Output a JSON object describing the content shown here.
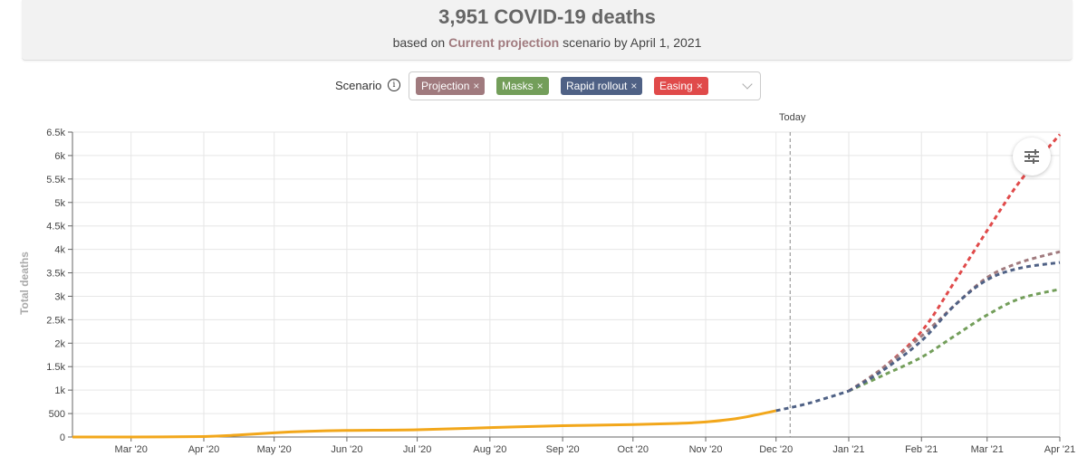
{
  "header": {
    "headline": "3,951 COVID-19 deaths",
    "sub_prefix": "based on",
    "sub_scenario": "Current projection",
    "sub_suffix": "scenario by April 1, 2021"
  },
  "scenario_select": {
    "label": "Scenario",
    "info_icon": "info-icon",
    "chips": [
      {
        "label": "Projection",
        "color": "#a07a7e"
      },
      {
        "label": "Masks",
        "color": "#739e5a"
      },
      {
        "label": "Rapid rollout",
        "color": "#4f6185"
      },
      {
        "label": "Easing",
        "color": "#e04a4a"
      }
    ],
    "remove_glyph": "×"
  },
  "settings_icon": "sliders-icon",
  "today_label": "Today",
  "chart_data": {
    "type": "line",
    "ylabel": "Total deaths",
    "xlabel": "",
    "ylim": [
      0,
      6500
    ],
    "xlim": [
      "2020-02-05",
      "2021-04-01"
    ],
    "today": "2020-12-07",
    "grid": true,
    "x_ticks": [
      {
        "date": "2020-03-01",
        "label": "Mar '20"
      },
      {
        "date": "2020-04-01",
        "label": "Apr '20"
      },
      {
        "date": "2020-05-01",
        "label": "May '20"
      },
      {
        "date": "2020-06-01",
        "label": "Jun '20"
      },
      {
        "date": "2020-07-01",
        "label": "Jul '20"
      },
      {
        "date": "2020-08-01",
        "label": "Aug '20"
      },
      {
        "date": "2020-09-01",
        "label": "Sep '20"
      },
      {
        "date": "2020-10-01",
        "label": "Oct '20"
      },
      {
        "date": "2020-11-01",
        "label": "Nov '20"
      },
      {
        "date": "2020-12-01",
        "label": "Dec '20"
      },
      {
        "date": "2021-01-01",
        "label": "Jan '21"
      },
      {
        "date": "2021-02-01",
        "label": "Feb '21"
      },
      {
        "date": "2021-03-01",
        "label": "Mar '21"
      },
      {
        "date": "2021-04-01",
        "label": "Apr '21"
      }
    ],
    "y_ticks": [
      {
        "value": 0,
        "label": "0"
      },
      {
        "value": 500,
        "label": "500"
      },
      {
        "value": 1000,
        "label": "1k"
      },
      {
        "value": 1500,
        "label": "1.5k"
      },
      {
        "value": 2000,
        "label": "2k"
      },
      {
        "value": 2500,
        "label": "2.5k"
      },
      {
        "value": 3000,
        "label": "3k"
      },
      {
        "value": 3500,
        "label": "3.5k"
      },
      {
        "value": 4000,
        "label": "4k"
      },
      {
        "value": 4500,
        "label": "4.5k"
      },
      {
        "value": 5000,
        "label": "5k"
      },
      {
        "value": 5500,
        "label": "5.5k"
      },
      {
        "value": 6000,
        "label": "6k"
      },
      {
        "value": 6500,
        "label": "6.5k"
      }
    ],
    "series": [
      {
        "color": "#f2a71b",
        "style": "solid",
        "points": [
          [
            "2020-02-05",
            0
          ],
          [
            "2020-03-01",
            0
          ],
          [
            "2020-04-01",
            10
          ],
          [
            "2020-04-15",
            40
          ],
          [
            "2020-05-01",
            90
          ],
          [
            "2020-05-15",
            120
          ],
          [
            "2020-06-01",
            140
          ],
          [
            "2020-07-01",
            155
          ],
          [
            "2020-08-01",
            200
          ],
          [
            "2020-09-01",
            240
          ],
          [
            "2020-10-01",
            265
          ],
          [
            "2020-10-20",
            290
          ],
          [
            "2020-11-01",
            320
          ],
          [
            "2020-11-15",
            400
          ],
          [
            "2020-12-01",
            560
          ]
        ]
      },
      {
        "color": "#4f6185",
        "style": "dashed",
        "points": [
          [
            "2020-12-01",
            560
          ],
          [
            "2020-12-15",
            720
          ],
          [
            "2021-01-01",
            980
          ]
        ]
      },
      {
        "color": "#739e5a",
        "style": "dashed",
        "points": [
          [
            "2021-01-01",
            980
          ],
          [
            "2021-01-15",
            1300
          ],
          [
            "2021-02-01",
            1700
          ],
          [
            "2021-02-15",
            2150
          ],
          [
            "2021-03-01",
            2600
          ],
          [
            "2021-03-15",
            2950
          ],
          [
            "2021-04-01",
            3150
          ]
        ]
      },
      {
        "color": "#e04a4a",
        "style": "dashed",
        "points": [
          [
            "2021-01-01",
            980
          ],
          [
            "2021-01-15",
            1450
          ],
          [
            "2021-02-01",
            2250
          ],
          [
            "2021-02-15",
            3300
          ],
          [
            "2021-03-01",
            4400
          ],
          [
            "2021-03-15",
            5450
          ],
          [
            "2021-04-01",
            6450
          ]
        ]
      },
      {
        "color": "#a07a7e",
        "style": "dashed",
        "points": [
          [
            "2021-01-01",
            980
          ],
          [
            "2021-01-15",
            1450
          ],
          [
            "2021-02-01",
            2150
          ],
          [
            "2021-02-15",
            2800
          ],
          [
            "2021-03-01",
            3400
          ],
          [
            "2021-03-15",
            3720
          ],
          [
            "2021-04-01",
            3951
          ]
        ]
      },
      {
        "color": "#4f6185",
        "style": "dashed",
        "points": [
          [
            "2021-01-01",
            980
          ],
          [
            "2021-01-15",
            1400
          ],
          [
            "2021-02-01",
            2050
          ],
          [
            "2021-02-15",
            2800
          ],
          [
            "2021-03-01",
            3350
          ],
          [
            "2021-03-15",
            3600
          ],
          [
            "2021-04-01",
            3720
          ]
        ]
      }
    ]
  }
}
